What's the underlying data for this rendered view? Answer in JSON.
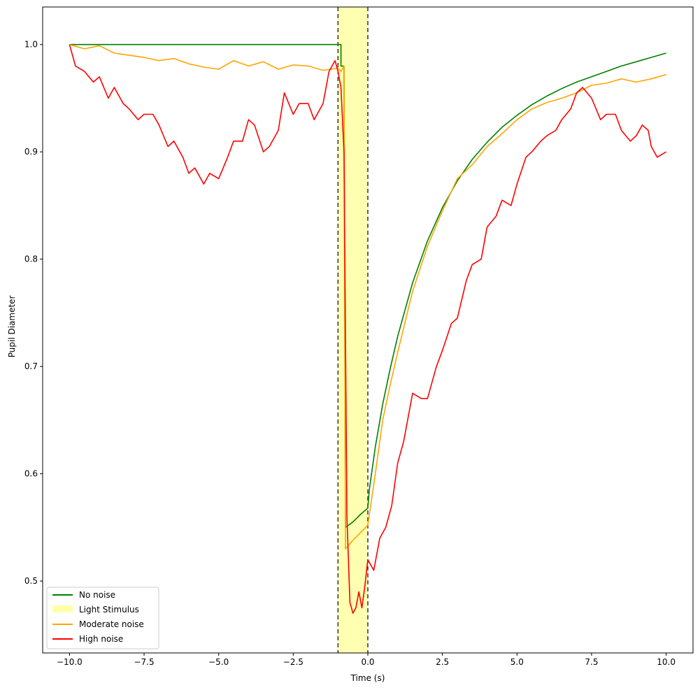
{
  "chart_data": {
    "type": "line",
    "title": "",
    "xlabel": "Time (s)",
    "ylabel": "Pupil Diameter",
    "xlim": [
      -10.9,
      10.9
    ],
    "ylim": [
      0.433,
      1.035
    ],
    "grid": false,
    "legend_position": "lower-left",
    "x_ticks": [
      -10.0,
      -7.5,
      -5.0,
      -2.5,
      0.0,
      2.5,
      5.0,
      7.5,
      10.0
    ],
    "x_tick_labels": [
      "−10.0",
      "−7.5",
      "−5.0",
      "−2.5",
      "0.0",
      "2.5",
      "5.0",
      "7.5",
      "10.0"
    ],
    "y_ticks": [
      0.5,
      0.6,
      0.7,
      0.8,
      0.9,
      1.0
    ],
    "y_tick_labels": [
      "0.5",
      "0.6",
      "0.7",
      "0.8",
      "0.9",
      "1.0"
    ],
    "stimulus": {
      "label": "Light Stimulus",
      "x_start": -1.0,
      "x_end": 0.0,
      "color": "#ffffaa"
    },
    "legend": [
      "No noise",
      "Light Stimulus",
      "Moderate noise",
      "High noise"
    ],
    "series": [
      {
        "name": "No noise",
        "color": "#008000",
        "x": [
          -10.0,
          -0.9,
          -0.9,
          -0.8,
          -0.75,
          -0.5,
          -0.25,
          0.0,
          0.05,
          0.25,
          0.5,
          0.75,
          1.0,
          1.5,
          2.0,
          2.5,
          3.0,
          3.5,
          4.0,
          4.5,
          5.0,
          5.5,
          6.0,
          6.5,
          7.0,
          7.5,
          8.0,
          8.5,
          9.0,
          9.5,
          10.0
        ],
        "y": [
          1.0,
          1.0,
          0.98,
          0.98,
          0.55,
          0.555,
          0.562,
          0.568,
          0.585,
          0.625,
          0.665,
          0.698,
          0.728,
          0.778,
          0.817,
          0.848,
          0.873,
          0.893,
          0.909,
          0.923,
          0.934,
          0.944,
          0.952,
          0.959,
          0.965,
          0.97,
          0.975,
          0.98,
          0.984,
          0.988,
          0.992
        ]
      },
      {
        "name": "Moderate noise",
        "color": "#ffa500",
        "x": [
          -10.0,
          -9.5,
          -9.0,
          -8.5,
          -8.0,
          -7.5,
          -7.0,
          -6.5,
          -6.0,
          -5.5,
          -5.0,
          -4.5,
          -4.0,
          -3.5,
          -3.0,
          -2.5,
          -2.0,
          -1.5,
          -1.0,
          -0.9,
          -0.8,
          -0.75,
          -0.5,
          -0.25,
          0.0,
          0.25,
          0.5,
          0.75,
          1.0,
          1.5,
          2.0,
          2.5,
          3.0,
          3.5,
          4.0,
          4.5,
          5.0,
          5.5,
          6.0,
          6.5,
          7.0,
          7.5,
          8.0,
          8.5,
          9.0,
          9.5,
          10.0
        ],
        "y": [
          1.0,
          0.996,
          0.999,
          0.992,
          0.99,
          0.988,
          0.985,
          0.987,
          0.982,
          0.979,
          0.977,
          0.985,
          0.98,
          0.984,
          0.977,
          0.981,
          0.98,
          0.976,
          0.978,
          0.975,
          0.98,
          0.53,
          0.538,
          0.545,
          0.552,
          0.6,
          0.65,
          0.683,
          0.713,
          0.77,
          0.812,
          0.845,
          0.875,
          0.888,
          0.905,
          0.917,
          0.93,
          0.94,
          0.946,
          0.95,
          0.955,
          0.962,
          0.964,
          0.968,
          0.965,
          0.968,
          0.972
        ]
      },
      {
        "name": "High noise",
        "color": "#ff0000",
        "x": [
          -10.0,
          -9.8,
          -9.5,
          -9.2,
          -9.0,
          -8.7,
          -8.5,
          -8.2,
          -8.0,
          -7.7,
          -7.5,
          -7.2,
          -7.0,
          -6.7,
          -6.5,
          -6.2,
          -6.0,
          -5.8,
          -5.5,
          -5.3,
          -5.0,
          -4.7,
          -4.5,
          -4.2,
          -4.0,
          -3.8,
          -3.5,
          -3.3,
          -3.0,
          -2.8,
          -2.5,
          -2.3,
          -2.0,
          -1.8,
          -1.5,
          -1.3,
          -1.1,
          -1.0,
          -0.9,
          -0.8,
          -0.7,
          -0.6,
          -0.5,
          -0.4,
          -0.3,
          -0.2,
          -0.1,
          0.0,
          0.2,
          0.4,
          0.6,
          0.8,
          1.0,
          1.2,
          1.5,
          1.8,
          2.0,
          2.3,
          2.5,
          2.8,
          3.0,
          3.3,
          3.5,
          3.8,
          4.0,
          4.3,
          4.5,
          4.8,
          5.0,
          5.3,
          5.5,
          5.8,
          6.0,
          6.3,
          6.5,
          6.8,
          7.0,
          7.2,
          7.5,
          7.8,
          8.0,
          8.3,
          8.5,
          8.8,
          9.0,
          9.2,
          9.4,
          9.5,
          9.7,
          10.0
        ],
        "y": [
          1.0,
          0.98,
          0.975,
          0.965,
          0.97,
          0.95,
          0.96,
          0.945,
          0.94,
          0.93,
          0.935,
          0.935,
          0.925,
          0.905,
          0.91,
          0.895,
          0.88,
          0.885,
          0.87,
          0.88,
          0.875,
          0.895,
          0.91,
          0.91,
          0.93,
          0.925,
          0.9,
          0.905,
          0.92,
          0.955,
          0.935,
          0.945,
          0.945,
          0.93,
          0.945,
          0.975,
          0.985,
          0.975,
          0.96,
          0.9,
          0.56,
          0.48,
          0.47,
          0.475,
          0.49,
          0.475,
          0.495,
          0.52,
          0.51,
          0.54,
          0.55,
          0.57,
          0.61,
          0.63,
          0.675,
          0.67,
          0.67,
          0.7,
          0.715,
          0.74,
          0.745,
          0.78,
          0.795,
          0.8,
          0.83,
          0.84,
          0.855,
          0.85,
          0.87,
          0.895,
          0.9,
          0.91,
          0.915,
          0.92,
          0.93,
          0.94,
          0.955,
          0.96,
          0.95,
          0.93,
          0.935,
          0.935,
          0.92,
          0.91,
          0.915,
          0.925,
          0.92,
          0.905,
          0.895,
          0.9
        ]
      }
    ]
  }
}
